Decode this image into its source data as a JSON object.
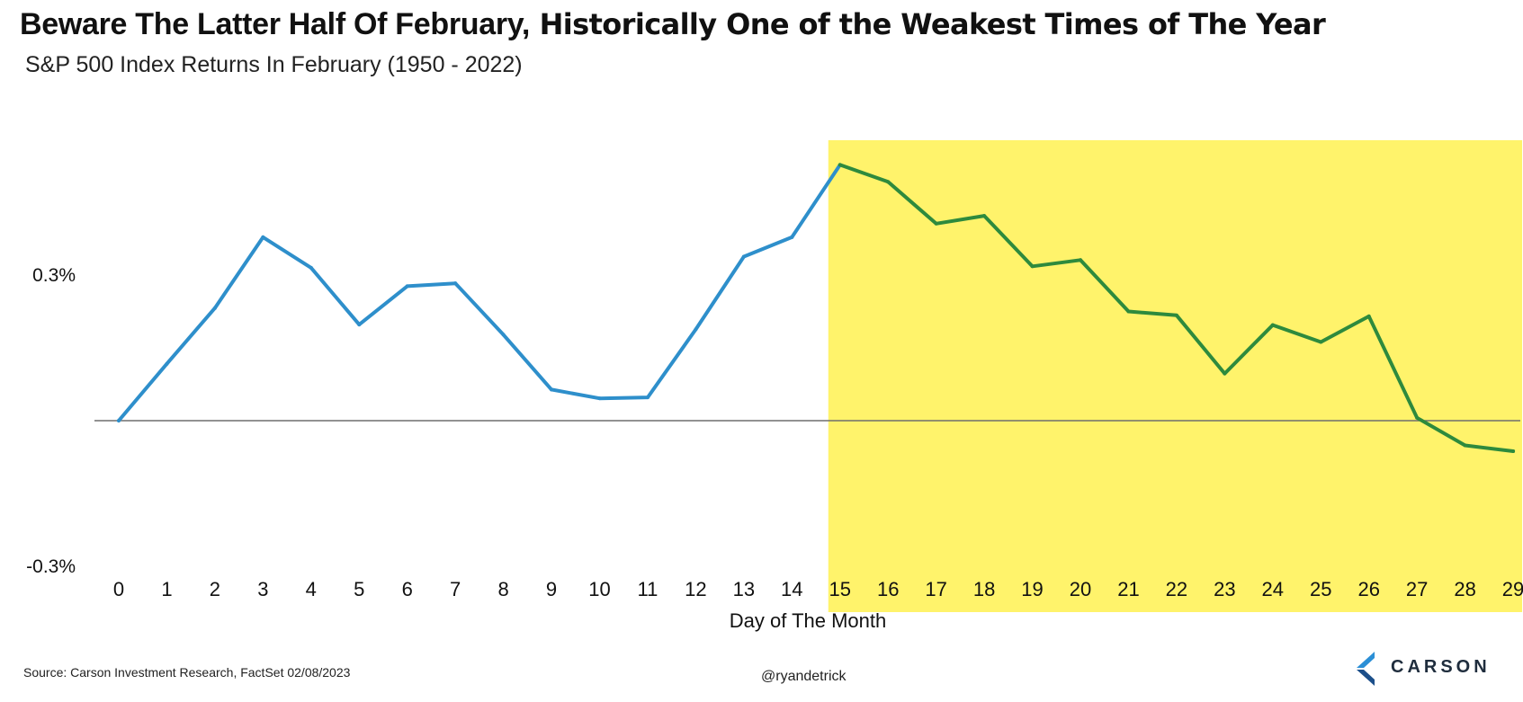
{
  "title_part1": "Beware The Latter Half Of February,",
  "title_part2": " Historically One of the Weakest Times of The Year",
  "subtitle": "S&P 500 Index Returns In February (1950 - 2022)",
  "source": "Source: Carson Investment Research, FactSet 02/08/2023",
  "handle": "@ryandetrick",
  "logo_text": "CARSON",
  "logo_icon": "carson-chevron-logo",
  "chart_data": {
    "type": "line",
    "title": "Beware The Latter Half Of February, Historically One of the Weakest Times of The Year",
    "subtitle": "S&P 500 Index Returns In February (1950 - 2022)",
    "xlabel": "Day of The Month",
    "ylabel": "",
    "x": [
      0,
      1,
      2,
      3,
      4,
      5,
      6,
      7,
      8,
      9,
      10,
      11,
      12,
      13,
      14,
      15,
      16,
      17,
      18,
      19,
      20,
      21,
      22,
      23,
      24,
      25,
      26,
      27,
      28,
      29
    ],
    "y_tick_labels": [
      {
        "value": 0.3,
        "label": "0.3%"
      },
      {
        "value": -0.3,
        "label": "-0.3%"
      }
    ],
    "ylim": [
      -0.3,
      0.53
    ],
    "grid": false,
    "zero_line": true,
    "series": [
      {
        "values": [
          0.0,
          0.117,
          0.232,
          0.378,
          0.315,
          0.198,
          0.277,
          0.283,
          0.177,
          0.064,
          0.046,
          0.048,
          0.188,
          0.338,
          0.378,
          0.527,
          0.492,
          0.406,
          0.422,
          0.318,
          0.331,
          0.225,
          0.217,
          0.097,
          0.197,
          0.162,
          0.215,
          0.006,
          -0.051,
          -0.063
        ],
        "color_first_half": "#2e8fcb",
        "color_second_half": "#2e8a3d",
        "split_day": 15
      }
    ],
    "highlight": {
      "from_day": 15,
      "to_day": 29,
      "color": "#fff36b"
    }
  }
}
